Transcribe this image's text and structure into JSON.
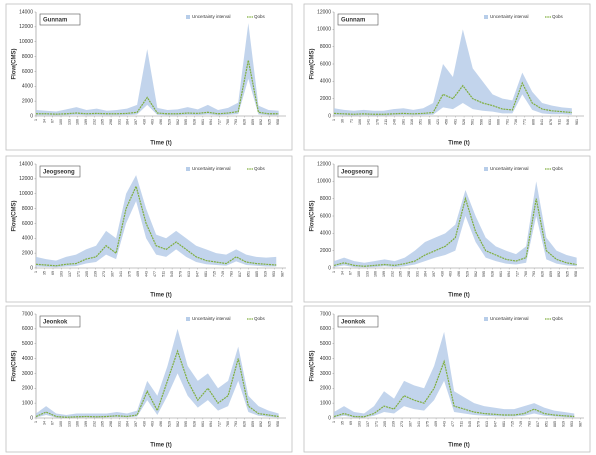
{
  "chart_data": [
    {
      "type": "line",
      "title": "Gunnam",
      "xlabel": "Time (t)",
      "ylabel": "Flow(CMS)",
      "xlim": [
        1,
        990
      ],
      "xticks": [
        1,
        34,
        67,
        100,
        133,
        166,
        199,
        232,
        265,
        298,
        331,
        364,
        397,
        430,
        463,
        496,
        529,
        562,
        595,
        628,
        661,
        694,
        727,
        760,
        793,
        826,
        859,
        892,
        925,
        958
      ],
      "ylim": [
        0,
        14000
      ],
      "yticks": [
        0,
        2000,
        4000,
        6000,
        8000,
        10000,
        12000,
        14000
      ],
      "x": [
        1,
        41,
        81,
        121,
        161,
        201,
        241,
        281,
        321,
        361,
        401,
        441,
        481,
        521,
        561,
        601,
        641,
        681,
        721,
        761,
        801,
        841,
        881,
        921,
        961
      ],
      "series": [
        {
          "name": "Uncertainty interval",
          "color": "#b7cde9",
          "upper": [
            800,
            700,
            600,
            900,
            1200,
            800,
            1000,
            700,
            800,
            1000,
            1500,
            9000,
            1100,
            800,
            900,
            1200,
            900,
            1500,
            800,
            1100,
            1800,
            12500,
            1400,
            800,
            700
          ],
          "lower": [
            100,
            100,
            80,
            100,
            150,
            100,
            120,
            100,
            100,
            120,
            200,
            1500,
            150,
            100,
            100,
            150,
            120,
            200,
            100,
            150,
            250,
            5000,
            200,
            100,
            100
          ]
        },
        {
          "name": "Qobs",
          "color": "#7fae3e",
          "values": [
            300,
            300,
            250,
            300,
            400,
            300,
            350,
            300,
            300,
            350,
            500,
            2500,
            400,
            300,
            300,
            400,
            350,
            500,
            300,
            400,
            600,
            7500,
            500,
            300,
            300
          ]
        }
      ]
    },
    {
      "type": "line",
      "title": "Gunnam",
      "xlabel": "Time (t)",
      "ylabel": "Flow(CMS)",
      "xlim": [
        1,
        1010
      ],
      "xticks": [
        1,
        36,
        71,
        106,
        141,
        176,
        211,
        246,
        281,
        316,
        351,
        386,
        421,
        456,
        491,
        526,
        561,
        596,
        631,
        666,
        701,
        736,
        771,
        806,
        841,
        876,
        911,
        946,
        981
      ],
      "ylim": [
        0,
        12000
      ],
      "yticks": [
        0,
        2000,
        4000,
        6000,
        8000,
        10000,
        12000
      ],
      "x": [
        1,
        41,
        81,
        121,
        161,
        201,
        241,
        281,
        321,
        361,
        401,
        441,
        481,
        521,
        561,
        601,
        641,
        681,
        721,
        761,
        801,
        841,
        881,
        921,
        961
      ],
      "series": [
        {
          "name": "Uncertainty interval",
          "color": "#b7cde9",
          "upper": [
            900,
            700,
            600,
            700,
            600,
            600,
            800,
            900,
            700,
            900,
            1500,
            6000,
            4500,
            10000,
            5500,
            4000,
            2500,
            2000,
            1800,
            5000,
            2800,
            1500,
            1200,
            1000,
            900
          ],
          "lower": [
            100,
            80,
            60,
            80,
            60,
            60,
            80,
            100,
            80,
            100,
            150,
            1000,
            800,
            1500,
            800,
            600,
            500,
            300,
            300,
            2500,
            700,
            300,
            200,
            200,
            150
          ]
        },
        {
          "name": "Qobs",
          "color": "#7fae3e",
          "values": [
            300,
            250,
            200,
            250,
            200,
            200,
            250,
            300,
            250,
            300,
            400,
            2500,
            2000,
            3500,
            2000,
            1500,
            1200,
            800,
            700,
            3800,
            1500,
            800,
            600,
            500,
            400
          ]
        }
      ]
    },
    {
      "type": "line",
      "title": "Jeogseong",
      "xlabel": "Time (t)",
      "ylabel": "Flow(CMS)",
      "xlim": [
        1,
        1000
      ],
      "xticks": [
        1,
        35,
        69,
        103,
        137,
        171,
        205,
        239,
        273,
        307,
        341,
        375,
        409,
        443,
        477,
        511,
        545,
        579,
        613,
        647,
        681,
        715,
        749,
        783,
        817,
        851,
        885,
        919,
        953,
        987
      ],
      "ylim": [
        0,
        14000
      ],
      "yticks": [
        0,
        2000,
        4000,
        6000,
        8000,
        10000,
        12000,
        14000
      ],
      "x": [
        1,
        41,
        81,
        121,
        161,
        201,
        241,
        281,
        321,
        361,
        401,
        441,
        481,
        521,
        561,
        601,
        641,
        681,
        721,
        761,
        801,
        841,
        881,
        921,
        961
      ],
      "series": [
        {
          "name": "Uncertainty interval",
          "color": "#b7cde9",
          "upper": [
            1500,
            1200,
            1000,
            1500,
            1800,
            2500,
            3000,
            5000,
            4000,
            10000,
            12500,
            8000,
            4500,
            4000,
            5000,
            4000,
            3000,
            2500,
            2000,
            1800,
            2500,
            1800,
            1500,
            1400,
            1500
          ],
          "lower": [
            200,
            150,
            100,
            200,
            250,
            600,
            800,
            1800,
            1200,
            6000,
            9000,
            4000,
            1800,
            1500,
            2500,
            1500,
            800,
            500,
            400,
            300,
            900,
            400,
            300,
            200,
            200
          ]
        },
        {
          "name": "Qobs",
          "color": "#7fae3e",
          "values": [
            500,
            400,
            300,
            500,
            600,
            1200,
            1500,
            3000,
            2000,
            8000,
            11000,
            6000,
            3000,
            2500,
            3500,
            2500,
            1500,
            1000,
            800,
            600,
            1500,
            800,
            600,
            500,
            400
          ]
        }
      ]
    },
    {
      "type": "line",
      "title": "Jeogseong",
      "xlabel": "Time (t)",
      "ylabel": "Flow(CMS)",
      "xlim": [
        1,
        990
      ],
      "xticks": [
        1,
        34,
        67,
        100,
        133,
        166,
        199,
        232,
        265,
        298,
        331,
        364,
        397,
        430,
        463,
        496,
        529,
        562,
        595,
        628,
        661,
        694,
        727,
        760,
        793,
        826,
        859,
        892,
        925,
        958
      ],
      "ylim": [
        0,
        12000
      ],
      "yticks": [
        0,
        2000,
        4000,
        6000,
        8000,
        10000,
        12000
      ],
      "x": [
        1,
        41,
        81,
        121,
        161,
        201,
        241,
        281,
        321,
        361,
        401,
        441,
        481,
        521,
        561,
        601,
        641,
        681,
        721,
        761,
        801,
        841,
        881,
        921,
        961
      ],
      "series": [
        {
          "name": "Uncertainty interval",
          "color": "#b7cde9",
          "upper": [
            800,
            1200,
            800,
            600,
            800,
            1000,
            800,
            1200,
            2000,
            3000,
            3500,
            4000,
            5000,
            9000,
            6000,
            3500,
            2500,
            2000,
            1600,
            2500,
            10000,
            3500,
            2000,
            1500,
            1200
          ],
          "lower": [
            100,
            300,
            100,
            80,
            100,
            200,
            100,
            200,
            400,
            800,
            1200,
            1500,
            2000,
            6000,
            3000,
            1200,
            800,
            500,
            400,
            600,
            6000,
            1000,
            500,
            300,
            200
          ]
        },
        {
          "name": "Qobs",
          "color": "#7fae3e",
          "values": [
            300,
            600,
            300,
            200,
            300,
            400,
            300,
            500,
            800,
            1500,
            2000,
            2500,
            3500,
            8000,
            4200,
            2000,
            1500,
            1000,
            800,
            1200,
            8000,
            2000,
            1000,
            600,
            400
          ]
        }
      ]
    },
    {
      "type": "line",
      "title": "Jeonkok",
      "xlabel": "Time (t)",
      "ylabel": "Flow(CMS)",
      "xlim": [
        1,
        990
      ],
      "xticks": [
        1,
        34,
        67,
        100,
        133,
        166,
        199,
        232,
        265,
        298,
        331,
        364,
        397,
        430,
        463,
        496,
        529,
        562,
        595,
        628,
        661,
        694,
        727,
        760,
        793,
        826,
        859,
        892,
        925,
        958
      ],
      "ylim": [
        0,
        7000
      ],
      "yticks": [
        0,
        1000,
        2000,
        3000,
        4000,
        5000,
        6000,
        7000
      ],
      "x": [
        1,
        41,
        81,
        121,
        161,
        201,
        241,
        281,
        321,
        361,
        401,
        441,
        481,
        521,
        561,
        601,
        641,
        681,
        721,
        761,
        801,
        841,
        881,
        921,
        961
      ],
      "series": [
        {
          "name": "Uncertainty interval",
          "color": "#b7cde9",
          "upper": [
            300,
            800,
            300,
            200,
            300,
            300,
            300,
            300,
            400,
            300,
            500,
            2500,
            1500,
            3500,
            6000,
            3500,
            2500,
            3000,
            2000,
            2500,
            4800,
            1500,
            800,
            500,
            300
          ],
          "lower": [
            30,
            200,
            30,
            20,
            30,
            50,
            30,
            50,
            60,
            50,
            100,
            1200,
            200,
            1500,
            3000,
            1500,
            700,
            1200,
            500,
            800,
            2500,
            400,
            150,
            80,
            30
          ]
        },
        {
          "name": "Qobs",
          "color": "#7fae3e",
          "values": [
            100,
            400,
            100,
            50,
            80,
            100,
            80,
            100,
            150,
            100,
            200,
            1800,
            500,
            2500,
            4500,
            2500,
            1200,
            2000,
            1000,
            1500,
            4000,
            800,
            300,
            200,
            100
          ]
        }
      ]
    },
    {
      "type": "line",
      "title": "Jeonkok",
      "xlabel": "Time (t)",
      "ylabel": "Flow(CMS)",
      "xlim": [
        1,
        1000
      ],
      "xticks": [
        1,
        35,
        69,
        103,
        137,
        171,
        205,
        239,
        273,
        307,
        341,
        375,
        409,
        443,
        477,
        511,
        545,
        579,
        613,
        647,
        681,
        715,
        749,
        783,
        817,
        851,
        885,
        919,
        953,
        987
      ],
      "ylim": [
        0,
        7000
      ],
      "yticks": [
        0,
        1000,
        2000,
        3000,
        4000,
        5000,
        6000,
        7000
      ],
      "x": [
        1,
        41,
        81,
        121,
        161,
        201,
        241,
        281,
        321,
        361,
        401,
        441,
        481,
        521,
        561,
        601,
        641,
        681,
        721,
        761,
        801,
        841,
        881,
        921,
        961
      ],
      "series": [
        {
          "name": "Uncertainty interval",
          "color": "#b7cde9",
          "upper": [
            400,
            800,
            400,
            300,
            800,
            1800,
            1300,
            2500,
            2200,
            2000,
            3500,
            5800,
            1800,
            1400,
            1000,
            800,
            700,
            600,
            600,
            800,
            1000,
            700,
            500,
            400,
            300
          ],
          "lower": [
            30,
            150,
            30,
            30,
            150,
            400,
            300,
            800,
            600,
            500,
            1200,
            2500,
            400,
            300,
            200,
            150,
            120,
            100,
            100,
            150,
            300,
            150,
            100,
            60,
            30
          ]
        },
        {
          "name": "Qobs",
          "color": "#7fae3e",
          "values": [
            100,
            300,
            100,
            80,
            300,
            800,
            600,
            1500,
            1200,
            1000,
            2000,
            3800,
            800,
            600,
            400,
            300,
            250,
            200,
            200,
            300,
            600,
            300,
            200,
            150,
            100
          ]
        }
      ]
    }
  ]
}
